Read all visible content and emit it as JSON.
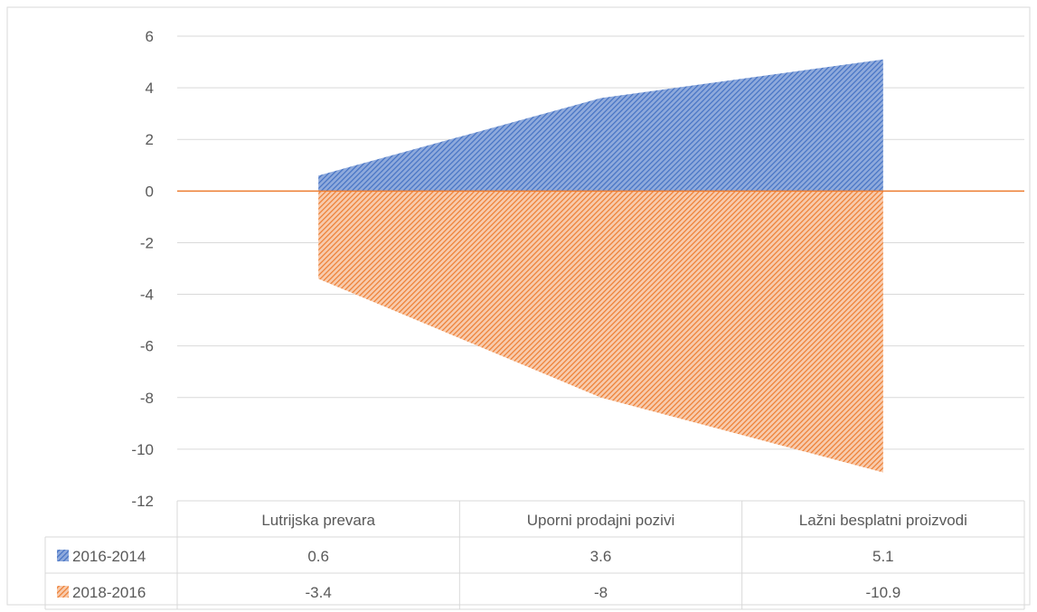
{
  "chart_data": {
    "type": "area",
    "categories": [
      "Lutrijska prevara",
      "Uporni prodajni pozivi",
      "Lažni besplatni proizvodi"
    ],
    "series": [
      {
        "name": "2016-2014",
        "values": [
          0.6,
          3.6,
          5.1
        ],
        "color": "#4472C4"
      },
      {
        "name": "2018-2016",
        "values": [
          -3.4,
          -8,
          -10.9
        ],
        "color": "#ED7D31"
      }
    ],
    "ylim": [
      -12,
      6
    ],
    "yticks": [
      6,
      4,
      2,
      0,
      -2,
      -4,
      -6,
      -8,
      -10,
      -12
    ],
    "grid": true,
    "legend": "data-table",
    "fill_pattern": "diagonal-hatch"
  }
}
